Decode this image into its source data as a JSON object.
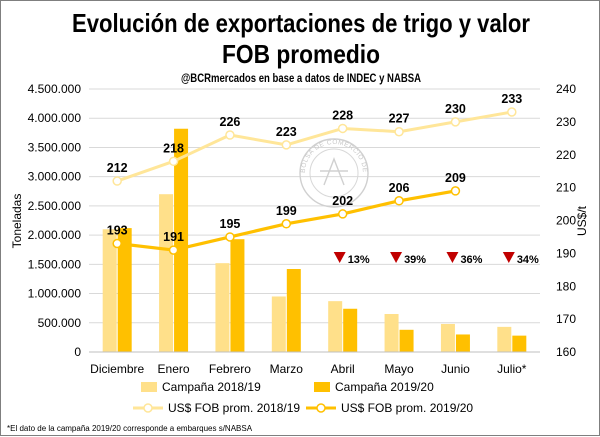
{
  "chart_data": {
    "type": "bar",
    "title_lines": [
      "Evolución de exportaciones de trigo y valor",
      "FOB promedio"
    ],
    "subtitle": "@BCRmercados en base a datos de INDEC y NABSA",
    "categories": [
      "Diciembre",
      "Enero",
      "Febrero",
      "Marzo",
      "Abril",
      "Mayo",
      "Junio",
      "Julio*"
    ],
    "ylabel": "Toneladas",
    "y2label": "US$/t",
    "ylim": [
      0,
      4500000
    ],
    "y2lim": [
      160,
      240
    ],
    "yticks": [
      "0",
      "500.000",
      "1.000.000",
      "1.500.000",
      "2.000.000",
      "2.500.000",
      "3.000.000",
      "3.500.000",
      "4.000.000",
      "4.500.000"
    ],
    "y2ticks": [
      "160",
      "170",
      "180",
      "190",
      "200",
      "210",
      "220",
      "230",
      "240"
    ],
    "grid": true,
    "bar_series": [
      {
        "name": "Campaña 2018/19",
        "color": "#ffe08a",
        "values": [
          2100000,
          2700000,
          1520000,
          950000,
          870000,
          650000,
          480000,
          430000
        ]
      },
      {
        "name": "Campaña 2019/20",
        "color": "#ffc000",
        "values": [
          2120000,
          3820000,
          1930000,
          1420000,
          740000,
          380000,
          300000,
          280000
        ]
      }
    ],
    "line_series": [
      {
        "name": "US$ FOB prom. 2018/19",
        "color": "#ffe699",
        "values": [
          212,
          218,
          226,
          223,
          228,
          227,
          230,
          233
        ],
        "labels": [
          "212",
          "218",
          "226",
          "223",
          "228",
          "227",
          "230",
          "233"
        ]
      },
      {
        "name": "US$ FOB prom. 2019/20",
        "color": "#ffc000",
        "values": [
          193,
          191,
          195,
          199,
          202,
          206,
          209,
          null
        ],
        "labels": [
          "193",
          "191",
          "195",
          "199",
          "202",
          "206",
          "209",
          ""
        ]
      }
    ],
    "change_markers": {
      "color": "#c00000",
      "items": [
        {
          "category": "Abril",
          "label": "13%"
        },
        {
          "category": "Mayo",
          "label": "39%"
        },
        {
          "category": "Junio",
          "label": "36%"
        },
        {
          "category": "Julio*",
          "label": "34%"
        }
      ]
    },
    "legend_placement": "bottom",
    "footnote": "*El dato de la campaña 2019/20 corresponde a embarques s/NABSA",
    "watermark_text": "BOLSA DE COMERCIO DE ROSARIO"
  }
}
